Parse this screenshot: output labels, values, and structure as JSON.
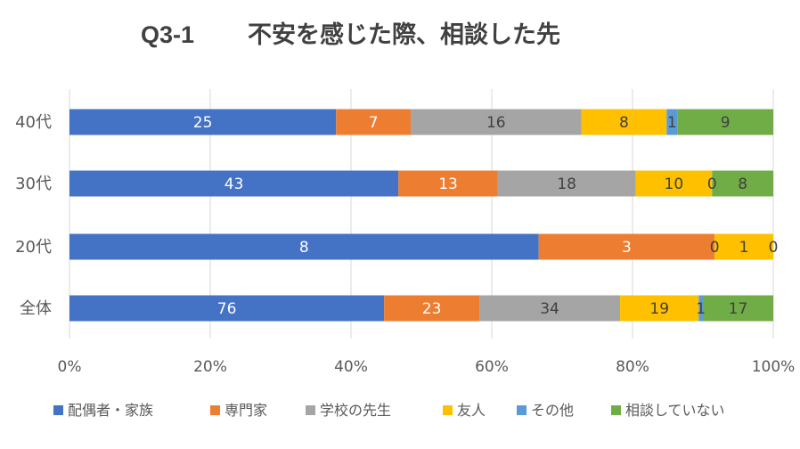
{
  "chart_data": {
    "type": "bar",
    "orientation": "horizontal",
    "stacked": "percent",
    "title_code": "Q3-1",
    "title_text": "不安を感じた際、相談した先",
    "categories": [
      "40代",
      "30代",
      "20代",
      "全体"
    ],
    "series": [
      {
        "name": "配偶者・家族",
        "color": "#4472C4",
        "label_color": "#ffffff",
        "values": [
          25,
          43,
          8,
          76
        ]
      },
      {
        "name": "専門家",
        "color": "#ED7D31",
        "label_color": "#ffffff",
        "values": [
          7,
          13,
          3,
          23
        ]
      },
      {
        "name": "学校の先生",
        "color": "#A5A5A5",
        "label_color": "#404040",
        "values": [
          16,
          18,
          0,
          34
        ]
      },
      {
        "name": "友人",
        "color": "#FFC000",
        "label_color": "#404040",
        "values": [
          8,
          10,
          1,
          19
        ]
      },
      {
        "name": "その他",
        "color": "#5B9BD5",
        "label_color": "#404040",
        "values": [
          1,
          0,
          null,
          1
        ]
      },
      {
        "name": "相談していない",
        "color": "#70AD47",
        "label_color": "#404040",
        "values": [
          9,
          8,
          0,
          17
        ]
      }
    ],
    "x_ticks": [
      "0%",
      "20%",
      "40%",
      "60%",
      "80%",
      "100%"
    ],
    "xlim": [
      0,
      100
    ],
    "grid": true,
    "legend_position": "bottom"
  }
}
